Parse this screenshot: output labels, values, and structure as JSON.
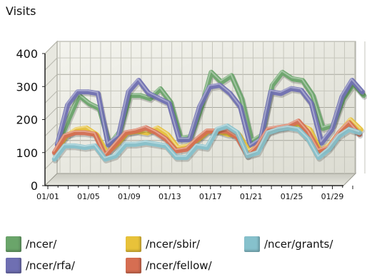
{
  "chart_data": {
    "type": "line",
    "title": "Visits",
    "xlabel": "",
    "ylabel": "",
    "ylim": [
      0,
      400
    ],
    "y_ticks": [
      "0",
      "100",
      "200",
      "300",
      "400"
    ],
    "x_tick_labels": [
      "01/01",
      "01/05",
      "01/09",
      "01/13",
      "01/17",
      "01/21",
      "01/25",
      "01/29"
    ],
    "x": [
      "01/01",
      "01/02",
      "01/03",
      "01/04",
      "01/05",
      "01/06",
      "01/07",
      "01/08",
      "01/09",
      "01/10",
      "01/11",
      "01/12",
      "01/13",
      "01/14",
      "01/15",
      "01/16",
      "01/17",
      "01/18",
      "01/19",
      "01/20",
      "01/21",
      "01/22",
      "01/23",
      "01/24",
      "01/25",
      "01/26",
      "01/27",
      "01/28",
      "01/29",
      "01/30",
      "01/31"
    ],
    "grid": true,
    "legend_position": "bottom",
    "series": [
      {
        "name": "/ncer/",
        "color": "#6aa56a",
        "values": [
          95,
          170,
          240,
          215,
          200,
          90,
          130,
          240,
          240,
          230,
          260,
          220,
          110,
          115,
          200,
          310,
          280,
          300,
          230,
          100,
          120,
          270,
          310,
          290,
          285,
          240,
          140,
          150,
          230,
          275,
          240
        ]
      },
      {
        "name": "/ncer/rfa/",
        "color": "#6f6fb2",
        "values": [
          95,
          215,
          255,
          255,
          250,
          95,
          120,
          255,
          290,
          250,
          235,
          220,
          110,
          110,
          210,
          270,
          275,
          250,
          210,
          90,
          110,
          255,
          250,
          265,
          260,
          220,
          100,
          140,
          240,
          290,
          255
        ]
      },
      {
        "name": "/ncer/sbir/",
        "color": "#e8c23a",
        "values": [
          80,
          125,
          145,
          150,
          130,
          75,
          100,
          135,
          140,
          135,
          150,
          130,
          90,
          95,
          115,
          140,
          140,
          130,
          130,
          80,
          95,
          140,
          150,
          155,
          160,
          145,
          80,
          100,
          140,
          175,
          145
        ]
      },
      {
        "name": "/ncer/grants/",
        "color": "#86c1cc",
        "values": [
          60,
          100,
          100,
          95,
          100,
          60,
          70,
          105,
          105,
          110,
          105,
          100,
          65,
          65,
          100,
          95,
          150,
          160,
          140,
          70,
          80,
          140,
          150,
          155,
          150,
          120,
          65,
          90,
          130,
          150,
          140
        ]
      },
      {
        "name": "/ncer/fellow/",
        "color": "#d66e52",
        "values": [
          80,
          130,
          140,
          140,
          135,
          70,
          105,
          140,
          145,
          155,
          140,
          120,
          85,
          90,
          120,
          145,
          145,
          145,
          125,
          70,
          100,
          150,
          155,
          160,
          175,
          140,
          85,
          95,
          140,
          170,
          135
        ]
      }
    ]
  }
}
